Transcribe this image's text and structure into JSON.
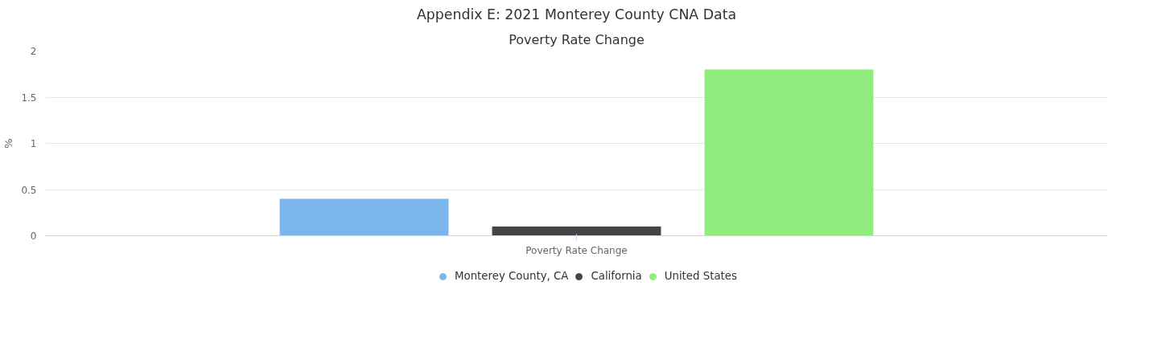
{
  "chart_data": {
    "type": "bar",
    "title": "Appendix E: 2021 Monterey County CNA Data",
    "subtitle": "Poverty Rate Change",
    "ylabel": "%",
    "categories": [
      "Poverty Rate Change"
    ],
    "series": [
      {
        "name": "Monterey County, CA",
        "color": "#7cb5ec",
        "values": [
          0.4
        ]
      },
      {
        "name": "California",
        "color": "#434348",
        "values": [
          0.1
        ]
      },
      {
        "name": "United States",
        "color": "#90ed7d",
        "values": [
          1.8
        ]
      }
    ],
    "ylim": [
      0,
      2
    ],
    "yticks": [
      0,
      0.5,
      1,
      1.5,
      2
    ],
    "grid": "y",
    "legend": "bottom"
  }
}
